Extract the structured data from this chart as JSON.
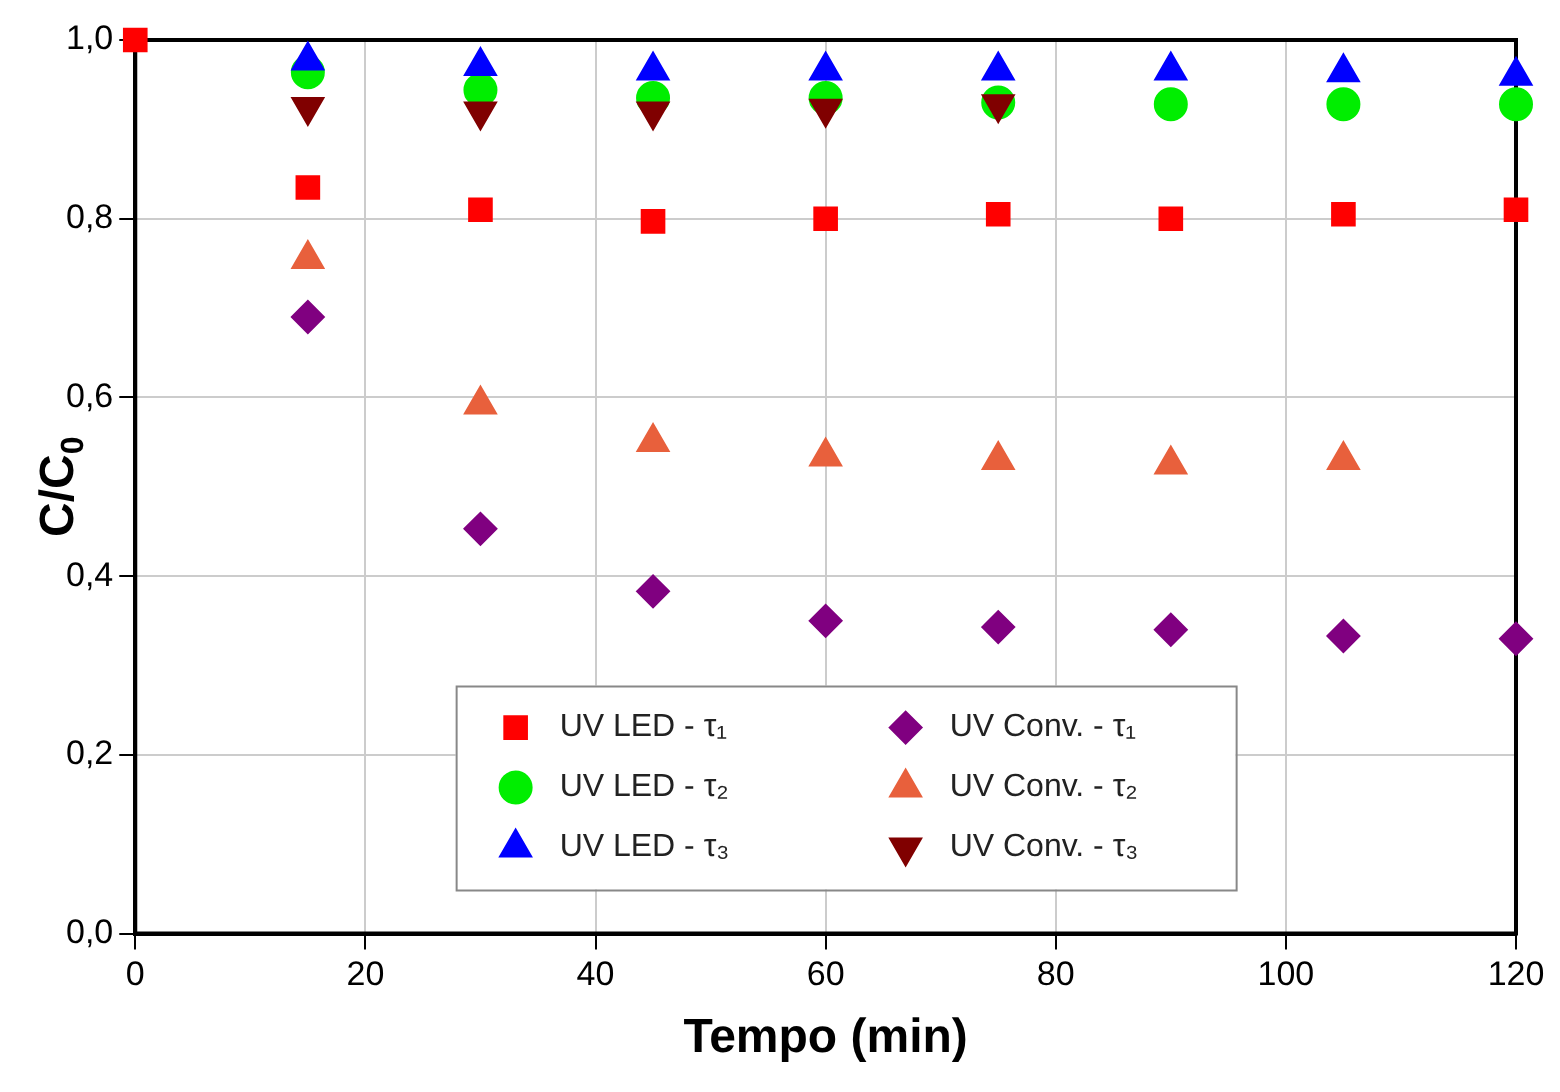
{
  "chart_data": {
    "type": "scatter",
    "xlabel": "Tempo (min)",
    "ylabel": "C/C$_{0}$",
    "x": [
      0,
      15,
      30,
      45,
      60,
      75,
      90,
      105,
      120
    ],
    "series": [
      {
        "name": "UV LED - τ₁",
        "color": "#ff0000",
        "marker": "square",
        "values": [
          1,
          0.835,
          0.81,
          0.797,
          0.8,
          0.805,
          0.8,
          0.805,
          0.81
        ]
      },
      {
        "name": "UV LED - τ₂",
        "color": "#00ee00",
        "marker": "circle",
        "values": [
          null,
          0.964,
          0.944,
          0.935,
          0.935,
          0.93,
          0.928,
          0.928,
          0.928
        ]
      },
      {
        "name": "UV LED - τ₃",
        "color": "#0000ff",
        "marker": "triangle",
        "values": [
          null,
          0.977,
          0.971,
          0.966,
          0.966,
          0.966,
          0.966,
          0.964,
          0.96
        ]
      },
      {
        "name": "UV Conv. - τ₁",
        "color": "#800080",
        "marker": "diamond",
        "values": [
          null,
          0.69,
          0.453,
          0.383,
          0.35,
          0.343,
          0.34,
          0.333,
          0.33
        ]
      },
      {
        "name": "UV Conv. - τ₂",
        "color": "#e8603c",
        "marker": "triangle",
        "values": [
          null,
          0.755,
          0.592,
          0.55,
          0.534,
          0.53,
          0.525,
          0.53,
          null
        ]
      },
      {
        "name": "UV Conv. - τ₃",
        "color": "#800000",
        "marker": "triangle-down",
        "values": [
          null,
          0.925,
          0.92,
          0.92,
          0.923,
          0.928,
          null,
          null,
          null
        ]
      }
    ],
    "xlim": [
      0,
      120
    ],
    "xticks": [
      0,
      20,
      40,
      60,
      80,
      100,
      120
    ],
    "ylim": [
      0,
      1
    ],
    "yticks": [
      {
        "value": 0,
        "label": "0,0"
      },
      {
        "value": 0.2,
        "label": "0,2"
      },
      {
        "value": 0.4,
        "label": "0,4"
      },
      {
        "value": 0.6,
        "label": "0,6"
      },
      {
        "value": 0.8,
        "label": "0,8"
      },
      {
        "value": 1,
        "label": "1,0"
      }
    ],
    "grid": true,
    "legend": "bottom"
  }
}
